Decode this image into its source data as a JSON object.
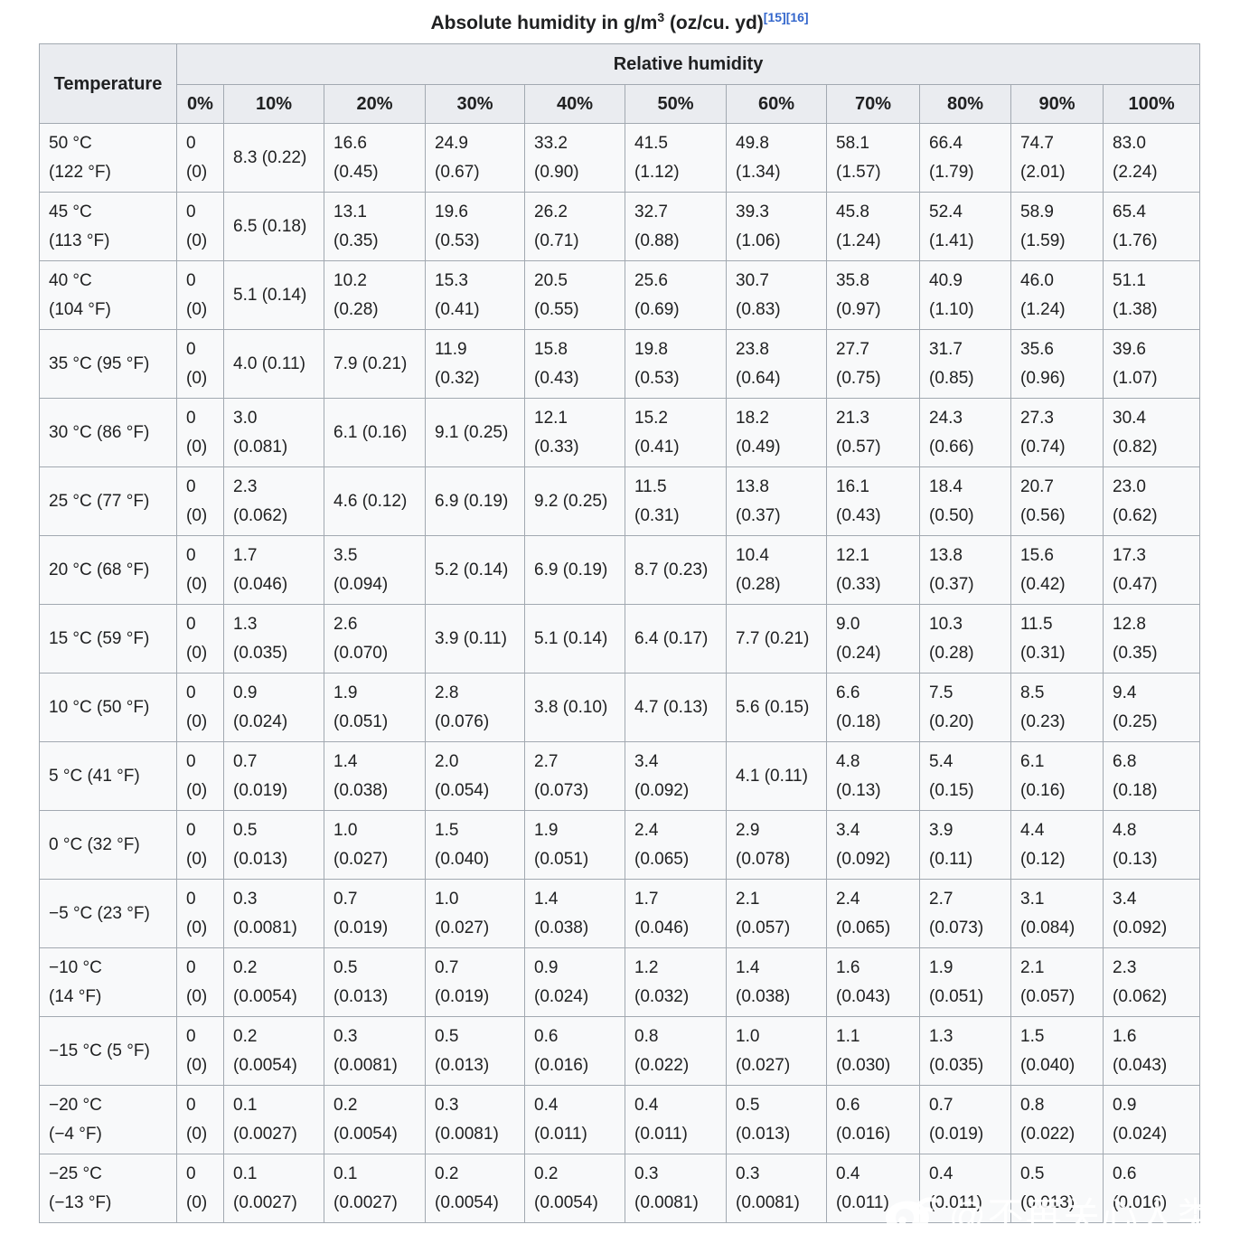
{
  "title": {
    "prefix": "Absolute humidity in g/m",
    "exponent": "3",
    "suffix": " (oz/cu. yd)",
    "references": [
      "[15]",
      "[16]"
    ]
  },
  "theme": {
    "header_bg": "#eaecf0",
    "cell_bg": "#f8f9fa",
    "border": "#a2a9b1",
    "text": "#202122",
    "link": "#3366cc",
    "watermark": "#ffffff"
  },
  "table": {
    "corner_header": "Temperature",
    "group_header": "Relative humidity",
    "column_headers": [
      "0%",
      "10%",
      "20%",
      "30%",
      "40%",
      "50%",
      "60%",
      "70%",
      "80%",
      "90%",
      "100%"
    ],
    "rows": [
      {
        "temperature": "50 °C\n(122 °F)",
        "values": [
          "0\n(0)",
          "8.3 (0.22)",
          "16.6\n(0.45)",
          "24.9\n(0.67)",
          "33.2\n(0.90)",
          "41.5\n(1.12)",
          "49.8\n(1.34)",
          "58.1\n(1.57)",
          "66.4\n(1.79)",
          "74.7\n(2.01)",
          "83.0\n(2.24)"
        ]
      },
      {
        "temperature": "45 °C\n(113 °F)",
        "values": [
          "0\n(0)",
          "6.5 (0.18)",
          "13.1\n(0.35)",
          "19.6\n(0.53)",
          "26.2\n(0.71)",
          "32.7\n(0.88)",
          "39.3\n(1.06)",
          "45.8\n(1.24)",
          "52.4\n(1.41)",
          "58.9\n(1.59)",
          "65.4\n(1.76)"
        ]
      },
      {
        "temperature": "40 °C\n(104 °F)",
        "values": [
          "0\n(0)",
          "5.1 (0.14)",
          "10.2\n(0.28)",
          "15.3\n(0.41)",
          "20.5\n(0.55)",
          "25.6\n(0.69)",
          "30.7\n(0.83)",
          "35.8\n(0.97)",
          "40.9\n(1.10)",
          "46.0\n(1.24)",
          "51.1\n(1.38)"
        ]
      },
      {
        "temperature": "35 °C (95 °F)",
        "values": [
          "0\n(0)",
          "4.0 (0.11)",
          "7.9 (0.21)",
          "11.9\n(0.32)",
          "15.8\n(0.43)",
          "19.8\n(0.53)",
          "23.8\n(0.64)",
          "27.7\n(0.75)",
          "31.7\n(0.85)",
          "35.6\n(0.96)",
          "39.6\n(1.07)"
        ]
      },
      {
        "temperature": "30 °C (86 °F)",
        "values": [
          "0\n(0)",
          "3.0\n(0.081)",
          "6.1 (0.16)",
          "9.1 (0.25)",
          "12.1\n(0.33)",
          "15.2\n(0.41)",
          "18.2\n(0.49)",
          "21.3\n(0.57)",
          "24.3\n(0.66)",
          "27.3\n(0.74)",
          "30.4\n(0.82)"
        ]
      },
      {
        "temperature": "25 °C (77 °F)",
        "values": [
          "0\n(0)",
          "2.3\n(0.062)",
          "4.6 (0.12)",
          "6.9 (0.19)",
          "9.2 (0.25)",
          "11.5\n(0.31)",
          "13.8\n(0.37)",
          "16.1\n(0.43)",
          "18.4\n(0.50)",
          "20.7\n(0.56)",
          "23.0\n(0.62)"
        ]
      },
      {
        "temperature": "20 °C (68 °F)",
        "values": [
          "0\n(0)",
          "1.7\n(0.046)",
          "3.5\n(0.094)",
          "5.2 (0.14)",
          "6.9 (0.19)",
          "8.7 (0.23)",
          "10.4\n(0.28)",
          "12.1\n(0.33)",
          "13.8\n(0.37)",
          "15.6\n(0.42)",
          "17.3\n(0.47)"
        ]
      },
      {
        "temperature": "15 °C (59 °F)",
        "values": [
          "0\n(0)",
          "1.3\n(0.035)",
          "2.6\n(0.070)",
          "3.9 (0.11)",
          "5.1 (0.14)",
          "6.4 (0.17)",
          "7.7 (0.21)",
          "9.0\n(0.24)",
          "10.3\n(0.28)",
          "11.5\n(0.31)",
          "12.8\n(0.35)"
        ]
      },
      {
        "temperature": "10 °C (50 °F)",
        "values": [
          "0\n(0)",
          "0.9\n(0.024)",
          "1.9\n(0.051)",
          "2.8\n(0.076)",
          "3.8 (0.10)",
          "4.7 (0.13)",
          "5.6 (0.15)",
          "6.6\n(0.18)",
          "7.5\n(0.20)",
          "8.5\n(0.23)",
          "9.4\n(0.25)"
        ]
      },
      {
        "temperature": "5 °C (41 °F)",
        "values": [
          "0\n(0)",
          "0.7\n(0.019)",
          "1.4\n(0.038)",
          "2.0\n(0.054)",
          "2.7\n(0.073)",
          "3.4\n(0.092)",
          "4.1 (0.11)",
          "4.8\n(0.13)",
          "5.4\n(0.15)",
          "6.1\n(0.16)",
          "6.8\n(0.18)"
        ]
      },
      {
        "temperature": "0 °C (32 °F)",
        "values": [
          "0\n(0)",
          "0.5\n(0.013)",
          "1.0\n(0.027)",
          "1.5\n(0.040)",
          "1.9\n(0.051)",
          "2.4\n(0.065)",
          "2.9\n(0.078)",
          "3.4\n(0.092)",
          "3.9\n(0.11)",
          "4.4\n(0.12)",
          "4.8\n(0.13)"
        ]
      },
      {
        "temperature": "−5 °C (23 °F)",
        "values": [
          "0\n(0)",
          "0.3\n(0.0081)",
          "0.7\n(0.019)",
          "1.0\n(0.027)",
          "1.4\n(0.038)",
          "1.7\n(0.046)",
          "2.1\n(0.057)",
          "2.4\n(0.065)",
          "2.7\n(0.073)",
          "3.1\n(0.084)",
          "3.4\n(0.092)"
        ]
      },
      {
        "temperature": "−10 °C\n(14 °F)",
        "values": [
          "0\n(0)",
          "0.2\n(0.0054)",
          "0.5\n(0.013)",
          "0.7\n(0.019)",
          "0.9\n(0.024)",
          "1.2\n(0.032)",
          "1.4\n(0.038)",
          "1.6\n(0.043)",
          "1.9\n(0.051)",
          "2.1\n(0.057)",
          "2.3\n(0.062)"
        ]
      },
      {
        "temperature": "−15 °C (5 °F)",
        "values": [
          "0\n(0)",
          "0.2\n(0.0054)",
          "0.3\n(0.0081)",
          "0.5\n(0.013)",
          "0.6\n(0.016)",
          "0.8\n(0.022)",
          "1.0\n(0.027)",
          "1.1\n(0.030)",
          "1.3\n(0.035)",
          "1.5\n(0.040)",
          "1.6\n(0.043)"
        ]
      },
      {
        "temperature": "−20 °C\n(−4 °F)",
        "values": [
          "0\n(0)",
          "0.1\n(0.0027)",
          "0.2\n(0.0054)",
          "0.3\n(0.0081)",
          "0.4\n(0.011)",
          "0.4\n(0.011)",
          "0.5\n(0.013)",
          "0.6\n(0.016)",
          "0.7\n(0.019)",
          "0.8\n(0.022)",
          "0.9\n(0.024)"
        ]
      },
      {
        "temperature": "−25 °C\n(−13 °F)",
        "values": [
          "0\n(0)",
          "0.1\n(0.0027)",
          "0.1\n(0.0027)",
          "0.2\n(0.0054)",
          "0.2\n(0.0054)",
          "0.3\n(0.0081)",
          "0.3\n(0.0081)",
          "0.4\n(0.011)",
          "0.4\n(0.011)",
          "0.5\n(0.013)",
          "0.6\n(0.016)"
        ]
      }
    ]
  },
  "watermark": {
    "handle": "@不再关心人类de垠",
    "icon": "weibo-logo"
  }
}
